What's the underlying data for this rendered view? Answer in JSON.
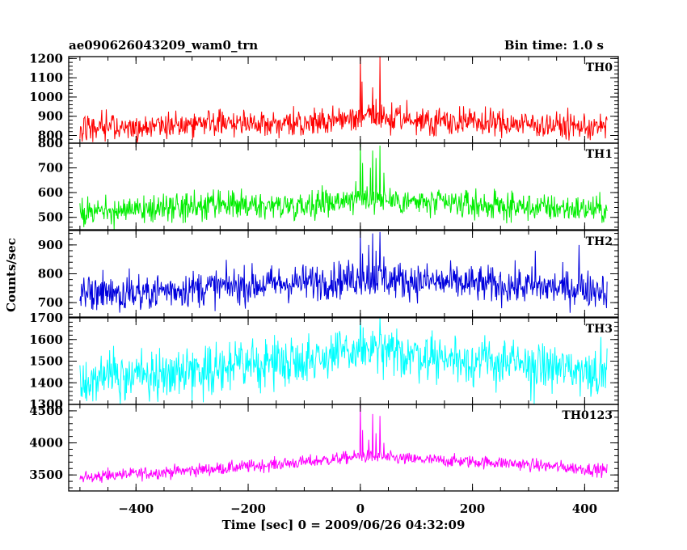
{
  "header": {
    "title": "ae090626043209_wam0_trn",
    "bin_time": "Bin time: 1.0 s"
  },
  "axes": {
    "xlabel": "Time [sec] 0 = 2009/06/26 04:32:09",
    "ylabel": "Counts/sec",
    "xlim": [
      -520,
      460
    ],
    "xticks": [
      -400,
      -200,
      0,
      200,
      400
    ],
    "xtick_labels": [
      "−400",
      "−200",
      "0",
      "200",
      "400"
    ]
  },
  "chart_data": {
    "type": "line",
    "x_range": [
      -500,
      440
    ],
    "bin_seconds": 1.0,
    "panels": [
      {
        "name": "TH0",
        "color": "#ff0000",
        "ylim": [
          760,
          1210
        ],
        "yticks": [
          800,
          900,
          1000,
          1100,
          1200
        ],
        "baseline": [
          [
            -500,
            830
          ],
          [
            -250,
            870
          ],
          [
            -100,
            860
          ],
          [
            0,
            895
          ],
          [
            100,
            880
          ],
          [
            250,
            865
          ],
          [
            440,
            840
          ]
        ],
        "noise": 35,
        "peaks": [
          [
            0,
            1215
          ],
          [
            3,
            1080
          ],
          [
            15,
            960
          ],
          [
            22,
            1050
          ],
          [
            28,
            990
          ],
          [
            35,
            1210
          ],
          [
            42,
            950
          ]
        ]
      },
      {
        "name": "TH1",
        "color": "#00ee00",
        "ylim": [
          450,
          800
        ],
        "yticks": [
          500,
          600,
          700,
          800
        ],
        "baseline": [
          [
            -500,
            520
          ],
          [
            -250,
            545
          ],
          [
            -100,
            550
          ],
          [
            0,
            580
          ],
          [
            100,
            560
          ],
          [
            250,
            545
          ],
          [
            440,
            530
          ]
        ],
        "noise": 28,
        "peaks": [
          [
            0,
            800
          ],
          [
            4,
            720
          ],
          [
            18,
            700
          ],
          [
            22,
            770
          ],
          [
            28,
            740
          ],
          [
            35,
            790
          ],
          [
            42,
            680
          ]
        ]
      },
      {
        "name": "TH2",
        "color": "#0000dd",
        "ylim": [
          650,
          950
        ],
        "yticks": [
          700,
          800,
          900
        ],
        "baseline": [
          [
            -500,
            725
          ],
          [
            -250,
            755
          ],
          [
            -100,
            770
          ],
          [
            0,
            785
          ],
          [
            100,
            775
          ],
          [
            250,
            760
          ],
          [
            440,
            745
          ]
        ],
        "noise": 32,
        "peaks": [
          [
            0,
            945
          ],
          [
            4,
            870
          ],
          [
            15,
            900
          ],
          [
            22,
            940
          ],
          [
            28,
            880
          ],
          [
            35,
            945
          ],
          [
            42,
            860
          ],
          [
            312,
            880
          ],
          [
            390,
            900
          ]
        ]
      },
      {
        "name": "TH3",
        "color": "#00ffff",
        "ylim": [
          1300,
          1700
        ],
        "yticks": [
          1300,
          1400,
          1500,
          1600,
          1700
        ],
        "baseline": [
          [
            -500,
            1410
          ],
          [
            -250,
            1470
          ],
          [
            -100,
            1510
          ],
          [
            0,
            1545
          ],
          [
            100,
            1530
          ],
          [
            250,
            1490
          ],
          [
            440,
            1450
          ]
        ],
        "noise": 55,
        "peaks": [
          [
            0,
            1690
          ],
          [
            22,
            1640
          ],
          [
            35,
            1700
          ],
          [
            310,
            1300
          ]
        ]
      },
      {
        "name": "TH0123",
        "color": "#ff00ff",
        "ylim": [
          3250,
          4600
        ],
        "yticks": [
          3500,
          4000,
          4500
        ],
        "baseline": [
          [
            -500,
            3460
          ],
          [
            -250,
            3600
          ],
          [
            -100,
            3700
          ],
          [
            0,
            3790
          ],
          [
            100,
            3740
          ],
          [
            250,
            3690
          ],
          [
            440,
            3570
          ]
        ],
        "noise": 50,
        "peaks": [
          [
            0,
            4590
          ],
          [
            4,
            4200
          ],
          [
            15,
            4050
          ],
          [
            22,
            4450
          ],
          [
            28,
            4150
          ],
          [
            35,
            4420
          ],
          [
            42,
            4000
          ]
        ]
      }
    ]
  }
}
